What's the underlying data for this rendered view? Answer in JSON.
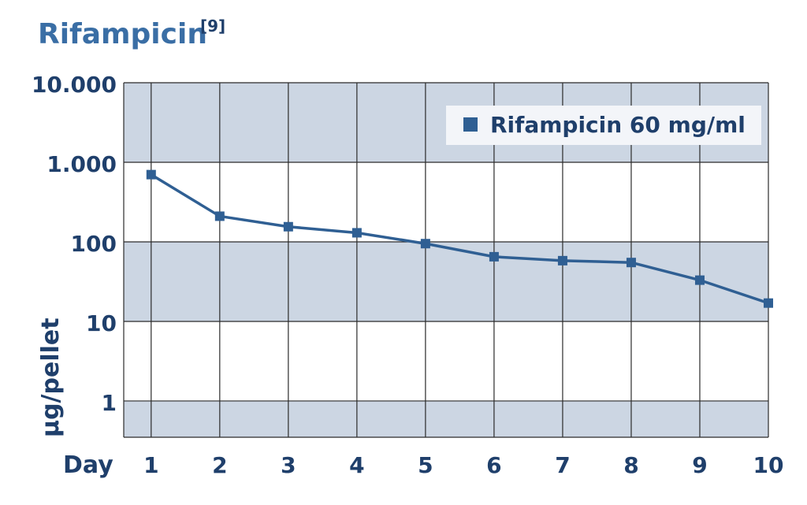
{
  "colors": {
    "title": "#3a6ea5",
    "text": "#1f3f6b",
    "band": "#ccd6e3",
    "grid": "#2b2b2b",
    "series": "#2f5f93",
    "legend_bg": "#f3f5f9"
  },
  "chart_data": {
    "type": "line",
    "title": "Rifampicin",
    "title_superscript": "[9]",
    "xlabel": "Day",
    "ylabel": "µg/pellet",
    "yscale": "log",
    "ylim": [
      0.35,
      10000
    ],
    "xlim": [
      0.6,
      10
    ],
    "grid": true,
    "legend_position": "top-right",
    "x_ticks": [
      "1",
      "2",
      "3",
      "4",
      "5",
      "6",
      "7",
      "8",
      "9",
      "10"
    ],
    "y_ticks": [
      {
        "value": 1,
        "label": "1"
      },
      {
        "value": 10,
        "label": "10"
      },
      {
        "value": 100,
        "label": "100"
      },
      {
        "value": 1000,
        "label": "1.000"
      },
      {
        "value": 10000,
        "label": "10.000"
      }
    ],
    "series": [
      {
        "name": "Rifampicin 60 mg/ml",
        "x": [
          1,
          2,
          3,
          4,
          5,
          6,
          7,
          8,
          9,
          10
        ],
        "y": [
          700,
          210,
          155,
          130,
          95,
          65,
          58,
          55,
          33,
          17
        ]
      }
    ]
  }
}
